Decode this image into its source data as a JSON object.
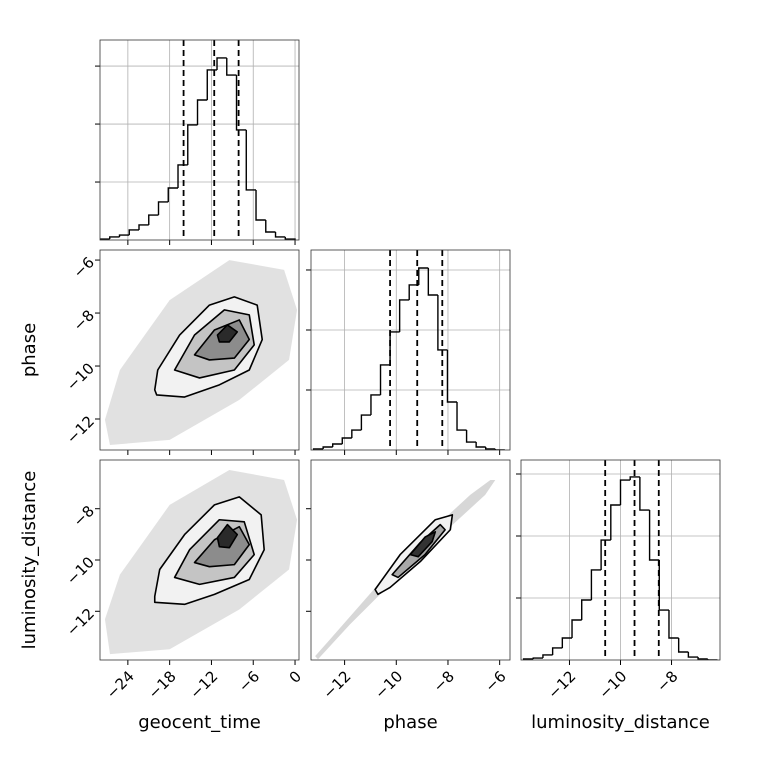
{
  "chart_data": [
    {
      "type": "histogram",
      "xlim": [
        -28,
        0.57
      ],
      "xticks": [
        -24,
        -18,
        -12,
        -6,
        0
      ],
      "ylim": [
        0,
        3450
      ],
      "yticks": [
        1000,
        2000,
        3000
      ],
      "grid": true,
      "color": "#000000",
      "bins": [
        -28,
        -26.6,
        -25.2,
        -23.8,
        -22.4,
        -21,
        -19.6,
        -18.2,
        -16.8,
        -15.4,
        -14,
        -12.6,
        -11.2,
        -9.8,
        -8.4,
        -7,
        -5.6,
        -4.2,
        -2.8,
        -1.4,
        0
      ],
      "counts": [
        17,
        52,
        86,
        173,
        259,
        431,
        656,
        897,
        1294,
        1984,
        2415,
        2933,
        3140,
        2846,
        1898,
        863,
        345,
        138,
        52,
        17
      ],
      "quantiles": [
        -16.0,
        -11.6,
        -8.1
      ]
    },
    {
      "type": "contour",
      "xlim": [
        -28,
        0.57
      ],
      "xticks": [
        -24,
        -18,
        -12,
        -6,
        0
      ],
      "ylim": [
        -13.17,
        -5.62
      ],
      "yticks": [
        {
          "value": -12,
          "label": "−12"
        },
        {
          "value": -10,
          "label": "−10"
        },
        {
          "value": -8,
          "label": "−8"
        },
        {
          "value": -6,
          "label": "−6"
        }
      ],
      "show_ytick_labels": true,
      "ylabel": "phase",
      "colors": [
        "#dcdcdc",
        "#f2f2f2",
        "#c4c4c4",
        "#8c8c8c",
        "#2a2a2a"
      ],
      "levels": [
        {
          "x": [
            -27.29,
            -25.14,
            -18,
            -9.43,
            -1.57,
            0.29,
            -0.86,
            -8,
            -18,
            -26.57
          ],
          "y": [
            -12.03,
            -10.15,
            -7.51,
            -6.0,
            -6.37,
            -7.88,
            -9.77,
            -11.28,
            -12.79,
            -12.98
          ]
        },
        {
          "x": [
            -20.14,
            -19.71,
            -16.57,
            -12.29,
            -8.71,
            -5.43,
            -4.71,
            -6.57,
            -10.86,
            -15.86,
            -19.86
          ],
          "y": [
            -10.9,
            -10.15,
            -8.83,
            -7.7,
            -7.39,
            -7.7,
            -9.0,
            -10.15,
            -10.71,
            -11.17,
            -11.09
          ]
        },
        {
          "x": [
            -17.29,
            -14.43,
            -10.14,
            -6.57,
            -5.86,
            -8.71,
            -13.71
          ],
          "y": [
            -10.15,
            -8.83,
            -7.88,
            -8.07,
            -9.2,
            -10.15,
            -10.45
          ]
        },
        {
          "x": [
            -14.43,
            -11.57,
            -8,
            -6.57,
            -8.71,
            -12.29
          ],
          "y": [
            -9.58,
            -8.64,
            -8.26,
            -9.0,
            -9.7,
            -9.77
          ]
        },
        {
          "x": [
            -11.14,
            -9.71,
            -8.29,
            -9.43,
            -10.86
          ],
          "y": [
            -8.83,
            -8.45,
            -8.71,
            -9.09,
            -9.09
          ]
        }
      ]
    },
    {
      "type": "histogram",
      "xlim": [
        -13.3,
        -5.6
      ],
      "xticks": [
        -12,
        -10,
        -8,
        -6
      ],
      "ylim": [
        0,
        3333
      ],
      "yticks": [
        1000,
        2000,
        3000
      ],
      "grid": true,
      "color": "#000000",
      "bins": [
        -13.2,
        -12.83,
        -12.46,
        -12.09,
        -11.72,
        -11.35,
        -10.98,
        -10.61,
        -10.24,
        -9.87,
        -9.5,
        -9.13,
        -8.76,
        -8.39,
        -8.02,
        -7.65,
        -7.28,
        -6.91,
        -6.54,
        -6.17,
        -5.8
      ],
      "counts": [
        17,
        50,
        100,
        200,
        333,
        583,
        917,
        1417,
        1967,
        2500,
        2750,
        3033,
        2583,
        1667,
        800,
        333,
        133,
        50,
        17,
        0
      ],
      "quantiles": [
        -10.24,
        -9.19,
        -8.22
      ]
    },
    {
      "type": "contour",
      "xlim": [
        -28,
        0.57
      ],
      "xticks": [
        {
          "value": -24,
          "label": "−24"
        },
        {
          "value": -18,
          "label": "−18"
        },
        {
          "value": -12,
          "label": "−12"
        },
        {
          "value": -6,
          "label": "−6"
        },
        0
      ],
      "ylim": [
        -13.9,
        -6.1
      ],
      "yticks": [
        {
          "value": -12,
          "label": "−12"
        },
        {
          "value": -10,
          "label": "−10"
        },
        {
          "value": -8,
          "label": "−8"
        }
      ],
      "show_xtick_labels": true,
      "show_ytick_labels": true,
      "xlabel": "geocent_time",
      "ylabel": "luminosity_distance",
      "colors": [
        "#dcdcdc",
        "#f2f2f2",
        "#c4c4c4",
        "#8c8c8c",
        "#2a2a2a"
      ],
      "levels": [
        {
          "x": [
            -27.29,
            -25.14,
            -18,
            -9.43,
            -1.57,
            0.29,
            -0.86,
            -8,
            -18,
            -26.57
          ],
          "y": [
            -12.31,
            -10.57,
            -7.85,
            -6.49,
            -6.88,
            -8.43,
            -10.37,
            -11.93,
            -13.48,
            -13.67
          ]
        },
        {
          "x": [
            -20.14,
            -19.43,
            -15.86,
            -11.57,
            -8,
            -4.86,
            -4.43,
            -6.57,
            -11.57,
            -15.86,
            -20.14
          ],
          "y": [
            -11.42,
            -10.37,
            -9.01,
            -7.85,
            -7.54,
            -8.24,
            -9.6,
            -10.76,
            -11.34,
            -11.73,
            -11.65
          ]
        },
        {
          "x": [
            -17.29,
            -15.14,
            -10.86,
            -7.29,
            -5.86,
            -8.71,
            -13.71
          ],
          "y": [
            -10.68,
            -9.6,
            -8.43,
            -8.51,
            -9.79,
            -10.68,
            -10.95
          ]
        },
        {
          "x": [
            -14.43,
            -11.57,
            -8,
            -6.57,
            -8.71,
            -12.29
          ],
          "y": [
            -10.1,
            -9.21,
            -8.7,
            -9.4,
            -10.18,
            -10.26
          ]
        },
        {
          "x": [
            -11.14,
            -9.71,
            -8.29,
            -9.43,
            -10.86
          ],
          "y": [
            -9.13,
            -8.62,
            -9.01,
            -9.52,
            -9.48
          ]
        }
      ]
    },
    {
      "type": "contour",
      "xlim": [
        -13.3,
        -5.6
      ],
      "xticks": [
        {
          "value": -12,
          "label": "−12"
        },
        {
          "value": -10,
          "label": "−10"
        },
        {
          "value": -8,
          "label": "−8"
        },
        {
          "value": -6,
          "label": "−6"
        }
      ],
      "ylim": [
        -13.9,
        -6.1
      ],
      "yticks": [
        -12,
        -10,
        -8
      ],
      "show_xtick_labels": true,
      "xlabel": "phase",
      "colors": [
        "#d0d0d0",
        "#f2f2f2",
        "#a8a8a8",
        "#333333"
      ],
      "levels": [
        {
          "x": [
            -13.14,
            -12.56,
            -9.85,
            -7.14,
            -6.36,
            -6.17,
            -6.56,
            -9.08,
            -11.79,
            -13.03
          ],
          "y": [
            -13.75,
            -13.09,
            -9.98,
            -7.46,
            -6.88,
            -6.88,
            -7.46,
            -9.79,
            -12.51,
            -13.87
          ]
        },
        {
          "x": [
            -10.82,
            -9.85,
            -8.49,
            -7.83,
            -7.91,
            -9.07,
            -10.24,
            -10.71
          ],
          "y": [
            -11.15,
            -9.79,
            -8.43,
            -8.24,
            -8.82,
            -10.06,
            -11.07,
            -11.34
          ]
        },
        {
          "x": [
            -10.16,
            -9.07,
            -8.3,
            -8.11,
            -8.89,
            -9.93
          ],
          "y": [
            -10.57,
            -9.32,
            -8.62,
            -8.82,
            -9.79,
            -10.68
          ]
        },
        {
          "x": [
            -9.46,
            -8.88,
            -8.49,
            -8.61,
            -9.15
          ],
          "y": [
            -9.79,
            -9.1,
            -8.9,
            -9.28,
            -9.87
          ]
        }
      ]
    },
    {
      "type": "histogram",
      "xlim": [
        -13.9,
        -6.1
      ],
      "xticks": [
        {
          "value": -12,
          "label": "−12"
        },
        {
          "value": -10,
          "label": "−10"
        },
        {
          "value": -8,
          "label": "−8"
        }
      ],
      "ylim": [
        0,
        3226
      ],
      "yticks": [
        1000,
        2000,
        3000
      ],
      "grid": true,
      "color": "#000000",
      "show_xtick_labels": true,
      "xlabel": "luminosity_distance",
      "bins": [
        -13.8,
        -13.42,
        -13.04,
        -12.66,
        -12.28,
        -11.9,
        -11.52,
        -11.14,
        -10.76,
        -10.38,
        -10,
        -9.62,
        -9.24,
        -8.86,
        -8.48,
        -8.1,
        -7.72,
        -7.34,
        -6.96,
        -6.58,
        -6.2
      ],
      "counts": [
        16,
        32,
        81,
        194,
        355,
        645,
        968,
        1452,
        1935,
        2500,
        2903,
        2952,
        2419,
        1613,
        806,
        355,
        129,
        48,
        16,
        0
      ],
      "quantiles": [
        -10.6,
        -9.45,
        -8.5
      ]
    }
  ]
}
